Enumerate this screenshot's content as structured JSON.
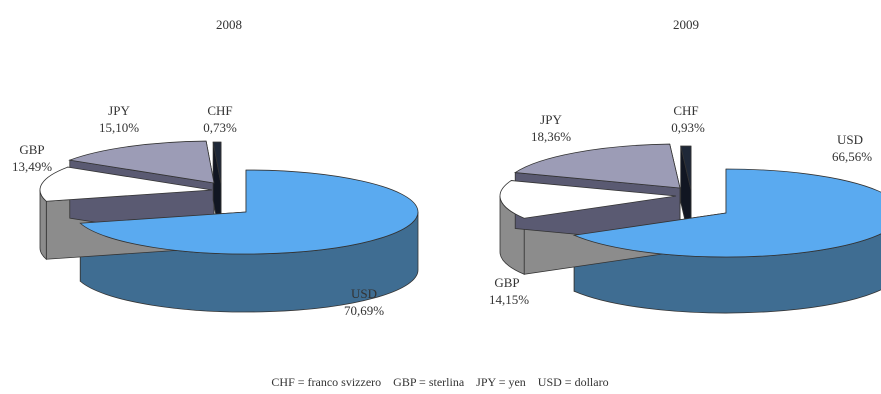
{
  "chart_data": [
    {
      "type": "pie",
      "title": "2008",
      "slices": [
        {
          "label": "USD",
          "value": 70.69,
          "value_text": "70,69%",
          "color": "#5aaaf0",
          "side": "#3f6d92"
        },
        {
          "label": "GBP",
          "value": 13.49,
          "value_text": "13,49%",
          "color": "#ffffff",
          "side": "#8c8c8c"
        },
        {
          "label": "JPY",
          "value": 15.1,
          "value_text": "15,10%",
          "color": "#9c9cb6",
          "side": "#5a5a72"
        },
        {
          "label": "CHF",
          "value": 0.73,
          "value_text": "0,73%",
          "color": "#1f2838",
          "side": "#111622"
        }
      ]
    },
    {
      "type": "pie",
      "title": "2009",
      "slices": [
        {
          "label": "USD",
          "value": 66.56,
          "value_text": "66,56%",
          "color": "#5aaaf0",
          "side": "#3f6d92"
        },
        {
          "label": "GBP",
          "value": 14.15,
          "value_text": "14,15%",
          "color": "#ffffff",
          "side": "#8c8c8c"
        },
        {
          "label": "JPY",
          "value": 18.36,
          "value_text": "18,36%",
          "color": "#9c9cb6",
          "side": "#5a5a72"
        },
        {
          "label": "CHF",
          "value": 0.93,
          "value_text": "0,93%",
          "color": "#1f2838",
          "side": "#111622"
        }
      ]
    }
  ],
  "legend_text": "CHF = franco svizzero    GBP = sterlina    JPY = yen    USD = dollaro"
}
